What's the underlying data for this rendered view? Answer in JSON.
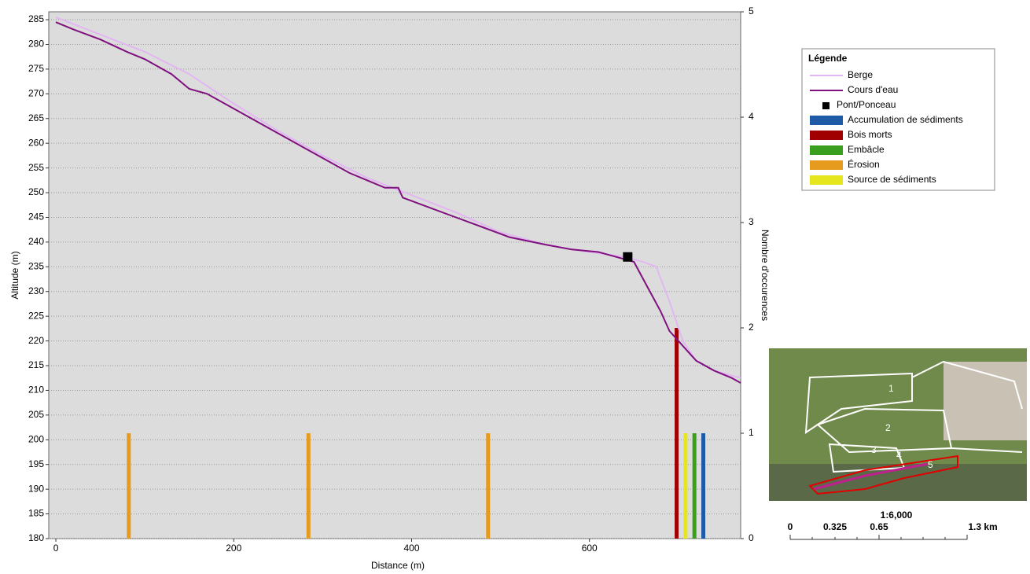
{
  "chart_data": {
    "type": "line",
    "x_label": "Distance (m)",
    "y_label": "Altitude (m)",
    "y2_label": "Nombre d'occurences",
    "legend_title": "Légende",
    "legend": "upper right",
    "xlim": [
      -8,
      770
    ],
    "xticks": [
      0,
      200,
      400,
      600
    ],
    "ylim": [
      180,
      286.6
    ],
    "yticks": [
      180,
      185,
      190,
      195,
      200,
      205,
      210,
      215,
      220,
      225,
      230,
      235,
      240,
      245,
      250,
      255,
      260,
      265,
      270,
      275,
      280,
      285
    ],
    "y2lim": [
      0,
      5
    ],
    "y2ticks": [
      0,
      1,
      2,
      3,
      4,
      5
    ],
    "grid": true,
    "series": [
      {
        "name": "Berge",
        "type": "line",
        "color": "#e2b6f2",
        "x": [
          0,
          50,
          100,
          150,
          200,
          250,
          300,
          350,
          400,
          450,
          500,
          550,
          600,
          640,
          660,
          675,
          690,
          705,
          720,
          740,
          770
        ],
        "values": [
          285.5,
          282,
          278.5,
          274,
          268,
          262.5,
          257.5,
          253,
          249.5,
          246,
          242,
          239.5,
          238,
          237,
          236,
          235,
          228,
          220,
          216,
          214,
          212.5
        ]
      },
      {
        "name": "Cours d'eau",
        "type": "line",
        "color": "#80107f",
        "x": [
          0,
          20,
          50,
          80,
          100,
          130,
          150,
          170,
          190,
          220,
          250,
          280,
          300,
          330,
          350,
          370,
          385,
          390,
          420,
          450,
          480,
          510,
          550,
          580,
          610,
          630,
          650,
          665,
          680,
          690,
          700,
          710,
          720,
          740,
          760,
          770
        ],
        "values": [
          284.5,
          283,
          281,
          278.5,
          277,
          274,
          271,
          270,
          268,
          265,
          262,
          259,
          257,
          254,
          252.5,
          251,
          251,
          249,
          247,
          245,
          243,
          241,
          239.5,
          238.5,
          238,
          237,
          236,
          231,
          226,
          222,
          220,
          218,
          216,
          214,
          212.5,
          211.5
        ]
      },
      {
        "name": "Pont/Ponceau",
        "type": "scatter",
        "color": "#000000",
        "x": [
          643
        ],
        "values": [
          237
        ]
      },
      {
        "name": "Accumulation de sédiments",
        "type": "bar",
        "axis": "y2",
        "color": "#1f5aa6",
        "x": [
          728
        ],
        "values": [
          1
        ]
      },
      {
        "name": "Bois morts",
        "type": "bar",
        "axis": "y2",
        "color": "#a00000",
        "x": [
          698
        ],
        "values": [
          2
        ]
      },
      {
        "name": "Embâcle",
        "type": "bar",
        "axis": "y2",
        "color": "#3a9e1e",
        "x": [
          718
        ],
        "values": [
          1
        ]
      },
      {
        "name": "Érosion",
        "type": "bar",
        "axis": "y2",
        "color": "#e69a1e",
        "x": [
          82,
          284,
          486
        ],
        "values": [
          1,
          1,
          1
        ]
      },
      {
        "name": "Source de sédiments",
        "type": "bar",
        "axis": "y2",
        "color": "#e6e61e",
        "x": [
          708
        ],
        "values": [
          1
        ]
      }
    ]
  },
  "inset": {
    "field_labels": [
      "1",
      "2",
      "3",
      "4",
      "5"
    ],
    "scale": "1:6,000",
    "scale_labels": [
      "0",
      "0.325",
      "0.65",
      "1.3 km"
    ]
  }
}
